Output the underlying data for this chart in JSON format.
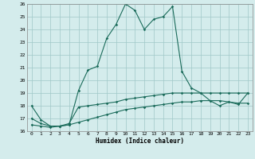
{
  "title": "",
  "xlabel": "Humidex (Indice chaleur)",
  "x": [
    0,
    1,
    2,
    3,
    4,
    5,
    6,
    7,
    8,
    9,
    10,
    11,
    12,
    13,
    14,
    15,
    16,
    17,
    18,
    19,
    20,
    21,
    22,
    23
  ],
  "line1": [
    18.0,
    16.9,
    16.4,
    16.4,
    16.5,
    19.2,
    20.8,
    21.1,
    23.3,
    24.4,
    26.0,
    25.5,
    24.0,
    24.8,
    25.0,
    25.8,
    20.7,
    19.4,
    19.0,
    18.4,
    18.0,
    18.3,
    18.1,
    19.0
  ],
  "line2": [
    17.0,
    16.6,
    16.4,
    16.4,
    16.6,
    17.9,
    18.0,
    18.1,
    18.2,
    18.3,
    18.5,
    18.6,
    18.7,
    18.8,
    18.9,
    19.0,
    19.0,
    19.0,
    19.0,
    19.0,
    19.0,
    19.0,
    19.0,
    19.0
  ],
  "line3": [
    16.5,
    16.4,
    16.3,
    16.4,
    16.5,
    16.7,
    16.9,
    17.1,
    17.3,
    17.5,
    17.7,
    17.8,
    17.9,
    18.0,
    18.1,
    18.2,
    18.3,
    18.3,
    18.4,
    18.4,
    18.4,
    18.3,
    18.2,
    18.2
  ],
  "line_color": "#1a6b5a",
  "bg_color": "#d4ecec",
  "grid_color": "#a0c8c8",
  "ylim": [
    16,
    26
  ],
  "yticks": [
    16,
    17,
    18,
    19,
    20,
    21,
    22,
    23,
    24,
    25,
    26
  ],
  "xticks": [
    0,
    1,
    2,
    3,
    4,
    5,
    6,
    7,
    8,
    9,
    10,
    11,
    12,
    13,
    14,
    15,
    16,
    17,
    18,
    19,
    20,
    21,
    22,
    23
  ]
}
